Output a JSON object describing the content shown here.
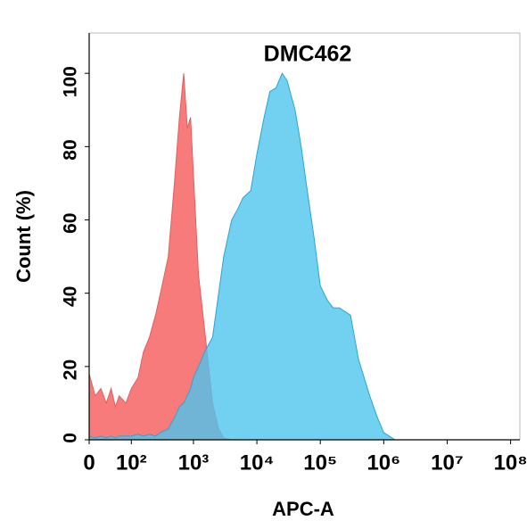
{
  "chart_data": {
    "type": "area",
    "title": "DMC462",
    "x_label": "APC-A",
    "y_label": "Count  (%)",
    "x_scale": "biexponential",
    "x": [
      0,
      10,
      20,
      30,
      40,
      50,
      60,
      80,
      100,
      130,
      160,
      200,
      250,
      300,
      400,
      500,
      600,
      700,
      800,
      900,
      1000,
      1200,
      1500,
      2000,
      2500,
      3000,
      4000,
      5000,
      6000,
      8000,
      10000,
      13000,
      16000,
      20000,
      25000,
      30000,
      40000,
      50000,
      60000,
      80000,
      100000,
      130000,
      160000,
      200000,
      300000,
      400000,
      600000,
      800000,
      1000000,
      1500000
    ],
    "series": [
      {
        "color": "#f77b7b",
        "values": [
          18,
          12,
          14,
          10,
          14,
          9,
          12,
          10,
          14,
          17,
          24,
          28,
          34,
          40,
          50,
          70,
          88,
          100,
          85,
          88,
          72,
          45,
          30,
          10,
          3,
          0.5,
          0,
          0,
          0,
          0,
          0,
          0,
          0,
          0,
          0,
          0,
          0,
          0,
          0,
          0,
          0,
          0,
          0,
          0,
          0,
          0,
          0,
          0,
          0,
          0
        ]
      },
      {
        "color": "#4fc4ee",
        "values": [
          1,
          0.5,
          1,
          0.5,
          1,
          0.5,
          1,
          1,
          1,
          1.5,
          1,
          1.5,
          1,
          2,
          3,
          6,
          9,
          10,
          12,
          14,
          17,
          20,
          24,
          28,
          40,
          50,
          60,
          63,
          66,
          68,
          78,
          88,
          95,
          96,
          100,
          98,
          90,
          80,
          70,
          55,
          42,
          38,
          36,
          36,
          34,
          22,
          12,
          6,
          2,
          0
        ]
      }
    ],
    "xlim": [
      0,
      140000000
    ],
    "xticks": [
      0,
      {
        "value": 100,
        "label": "10²"
      },
      {
        "value": 1000,
        "label": "10³"
      },
      {
        "value": 10000,
        "label": "10⁴"
      },
      {
        "value": 100000,
        "label": "10⁵"
      },
      {
        "value": 1000000,
        "label": "10⁶"
      },
      {
        "value": 10000000,
        "label": "10⁷"
      },
      {
        "value": 100000000,
        "label": "10⁸"
      }
    ],
    "ylim": [
      0,
      111
    ],
    "yticks": [
      0,
      20,
      40,
      60,
      80,
      100
    ]
  }
}
